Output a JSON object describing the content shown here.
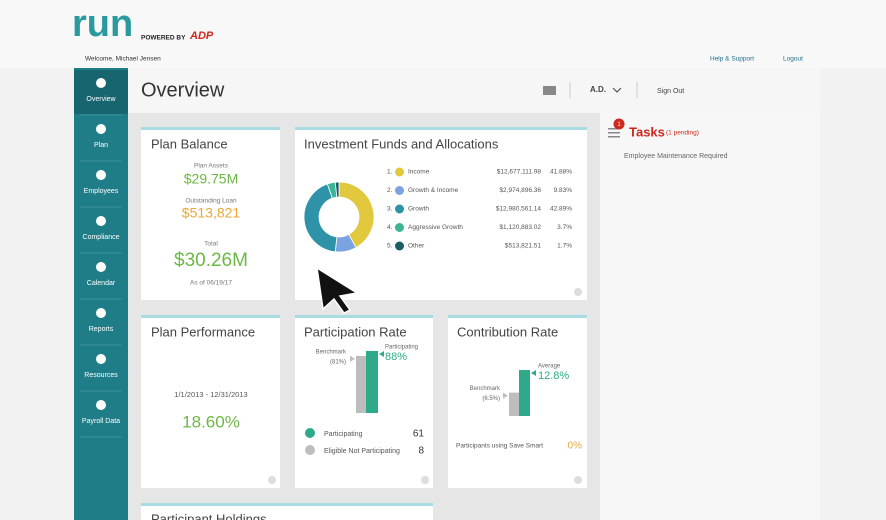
{
  "header": {
    "logo": "run",
    "powered_by": "POWERED BY",
    "brand": "ADP",
    "welcome": "Welcome, Michael Jensen",
    "help": "Help & Support",
    "logout": "Logout"
  },
  "nav": [
    "Overview",
    "Plan",
    "Employees",
    "Compliance",
    "Calendar",
    "Reports",
    "Resources",
    "Payroll Data"
  ],
  "topbar": {
    "title": "Overview",
    "user": "A.D.",
    "sign_out": "Sign Out"
  },
  "plan_balance": {
    "title": "Plan Balance",
    "assets_label": "Plan Assets",
    "assets": "$29.75M",
    "loan_label": "Outstanding Loan",
    "loan": "$513,821",
    "total_label": "Total",
    "total": "$30.26M",
    "as_of": "As of 06/19/17"
  },
  "investment": {
    "title": "Investment Funds and Allocations",
    "indices": [
      "1.",
      "2.",
      "3.",
      "4.",
      "5."
    ],
    "amounts": [
      "$12,677,111.98",
      "$2,974,896.36",
      "$12,980,561.14",
      "$1,120,883.02",
      "$513,821.51"
    ]
  },
  "plan_performance": {
    "title": "Plan Performance",
    "period": "1/1/2013 - 12/31/2013",
    "value": "18.60%"
  },
  "participation": {
    "title": "Participation Rate",
    "legend": [
      {
        "label": "Participating",
        "count": "61"
      },
      {
        "label": "Eligible Not Participating",
        "count": "8"
      }
    ]
  },
  "contribution": {
    "title": "Contribution Rate",
    "save_smart_label": "Participants using Save Smart",
    "save_smart_value": "0%"
  },
  "holdings": {
    "title": "Participant Holdings"
  },
  "tasks": {
    "badge": "1",
    "title": "Tasks",
    "pending": "(1 pending)",
    "items": [
      "Employee Maintenance Required"
    ]
  },
  "chart_data": [
    {
      "type": "pie",
      "categories": [
        "Income",
        "Growth & Income",
        "Growth",
        "Aggressive Growth",
        "Other"
      ],
      "values": [
        41.88,
        9.83,
        42.89,
        3.7,
        1.7
      ],
      "value_labels": [
        "41.88%",
        "9.83%",
        "42.89%",
        "3.7%",
        "1.7%"
      ],
      "colors": [
        "#e2c83c",
        "#7ba3e0",
        "#2e93a8",
        "#3bb594",
        "#1c5e66"
      ]
    },
    {
      "type": "bar",
      "categories": [
        "Benchmark",
        "Participating"
      ],
      "values": [
        81,
        88
      ],
      "value_labels": [
        "(81%)",
        "88%"
      ],
      "colors": [
        "#bdbdbd",
        "#2eaa8a"
      ]
    },
    {
      "type": "bar",
      "categories": [
        "Benchmark",
        "Average"
      ],
      "values": [
        6.5,
        12.8
      ],
      "value_labels": [
        "(6.5%)",
        "12.8%"
      ],
      "colors": [
        "#bdbdbd",
        "#2eaa8a"
      ]
    }
  ]
}
